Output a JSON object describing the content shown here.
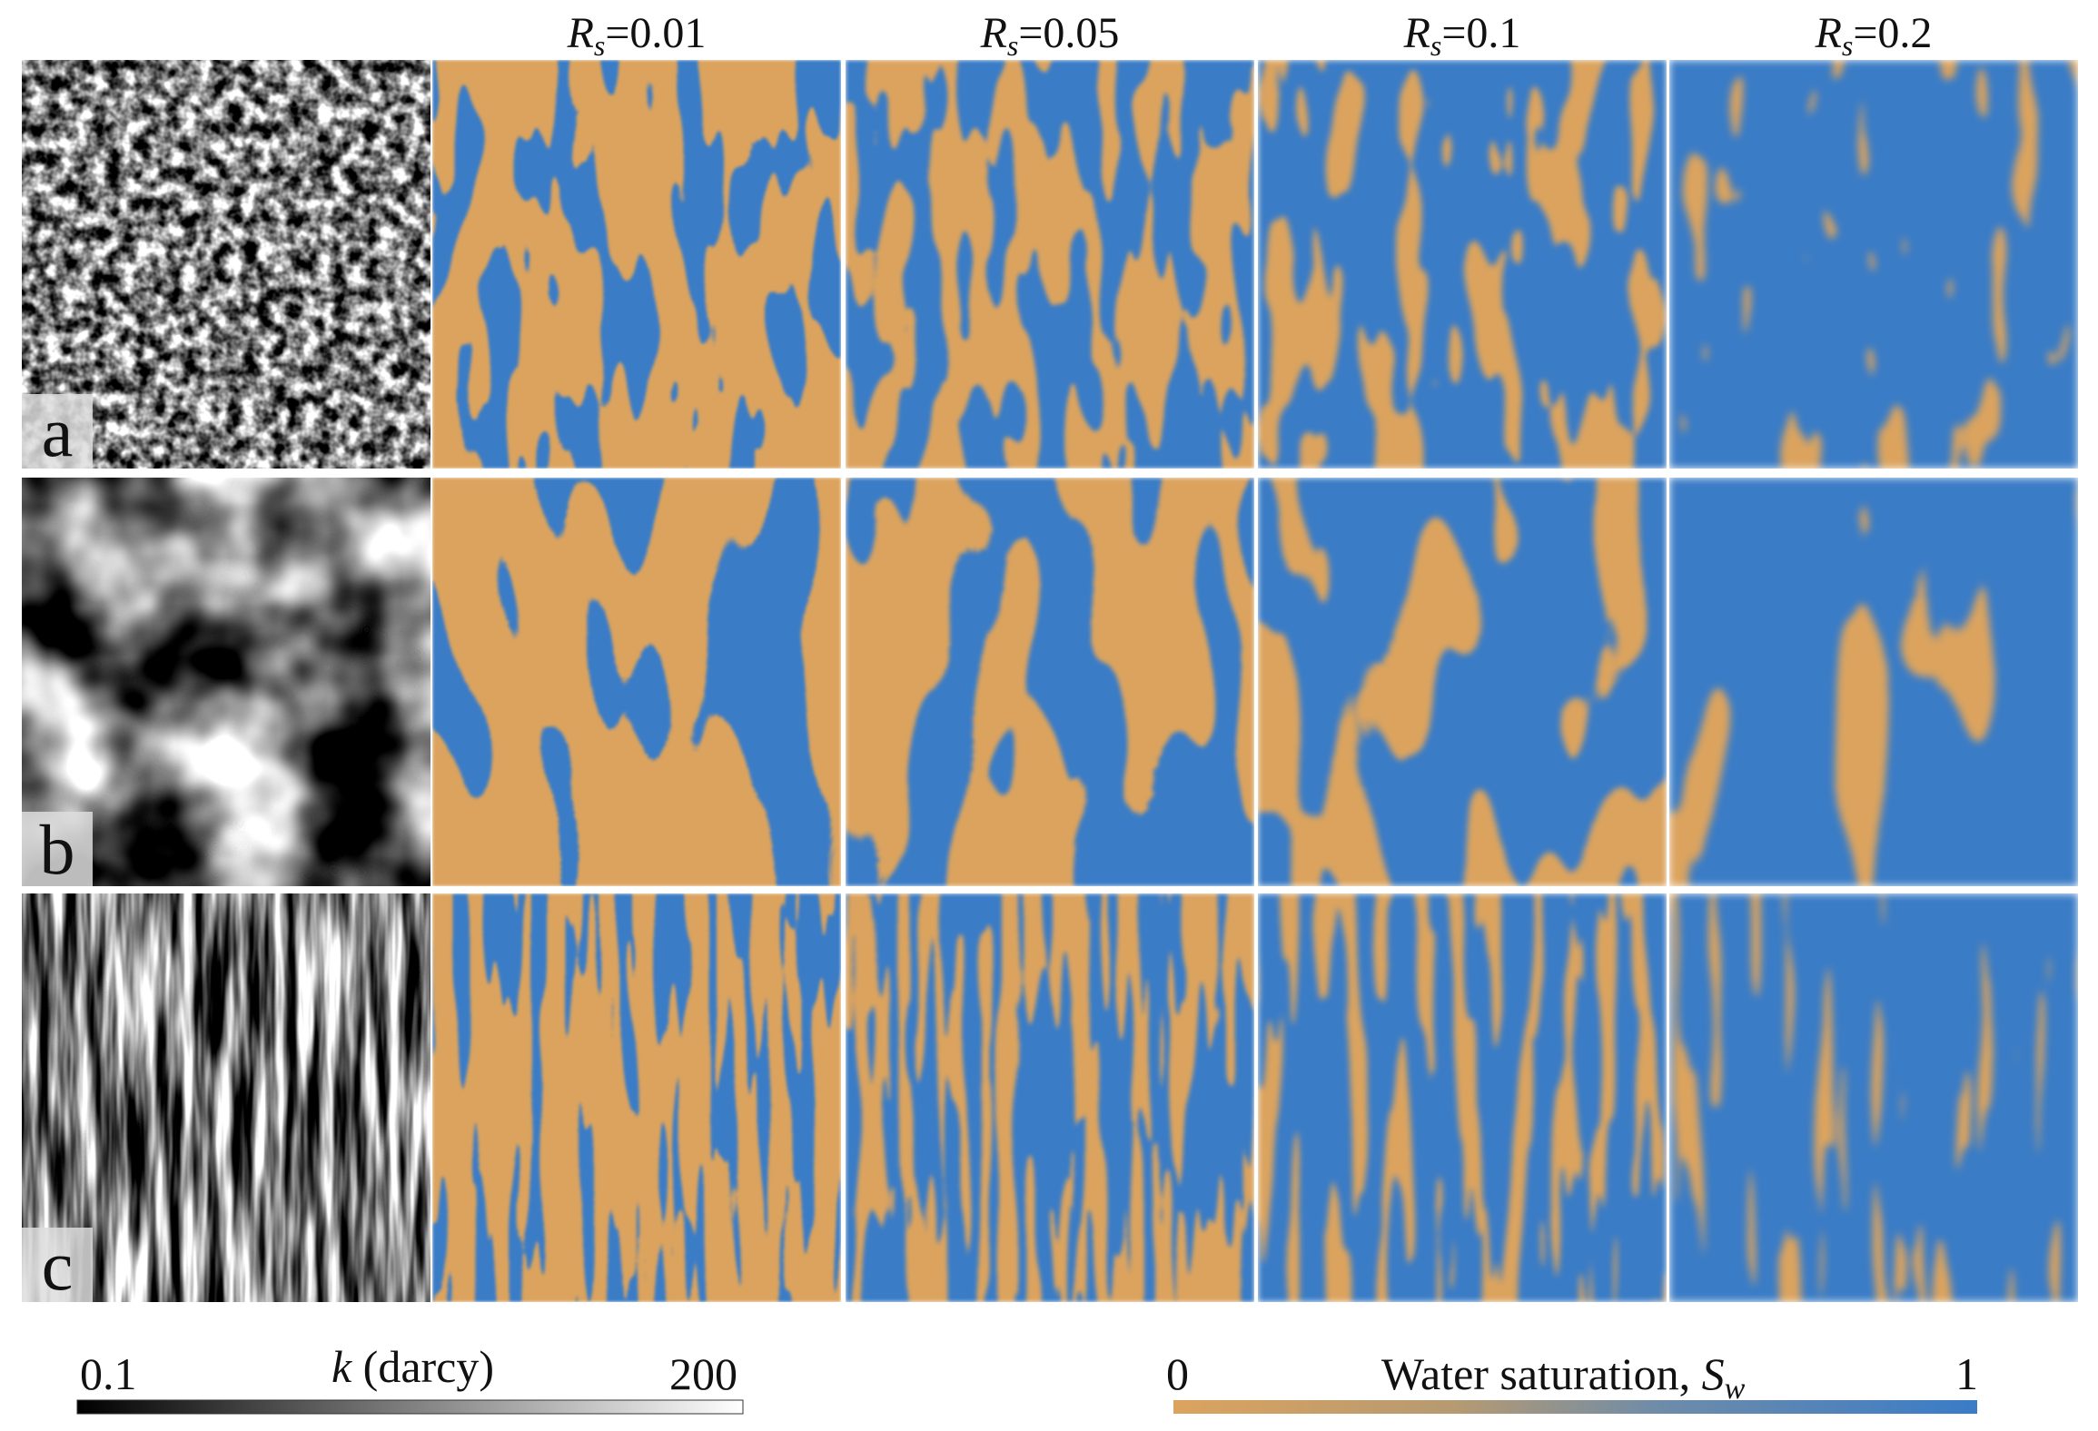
{
  "column_headers": [
    {
      "symbol": "R",
      "subscript": "s",
      "text": "=0.01"
    },
    {
      "symbol": "R",
      "subscript": "s",
      "text": "=0.05"
    },
    {
      "symbol": "R",
      "subscript": "s",
      "text": "=0.1"
    },
    {
      "symbol": "R",
      "subscript": "s",
      "text": "=0.2"
    }
  ],
  "row_labels": [
    "a",
    "b",
    "c"
  ],
  "permeability_colorbar": {
    "min_label": "0.1",
    "symbol": "k",
    "unit": " (darcy)",
    "max_label": "200"
  },
  "saturation_colorbar": {
    "min_label": "0",
    "title": "Water saturation, ",
    "symbol": "S",
    "subscript": "w",
    "max_label": "1"
  }
}
